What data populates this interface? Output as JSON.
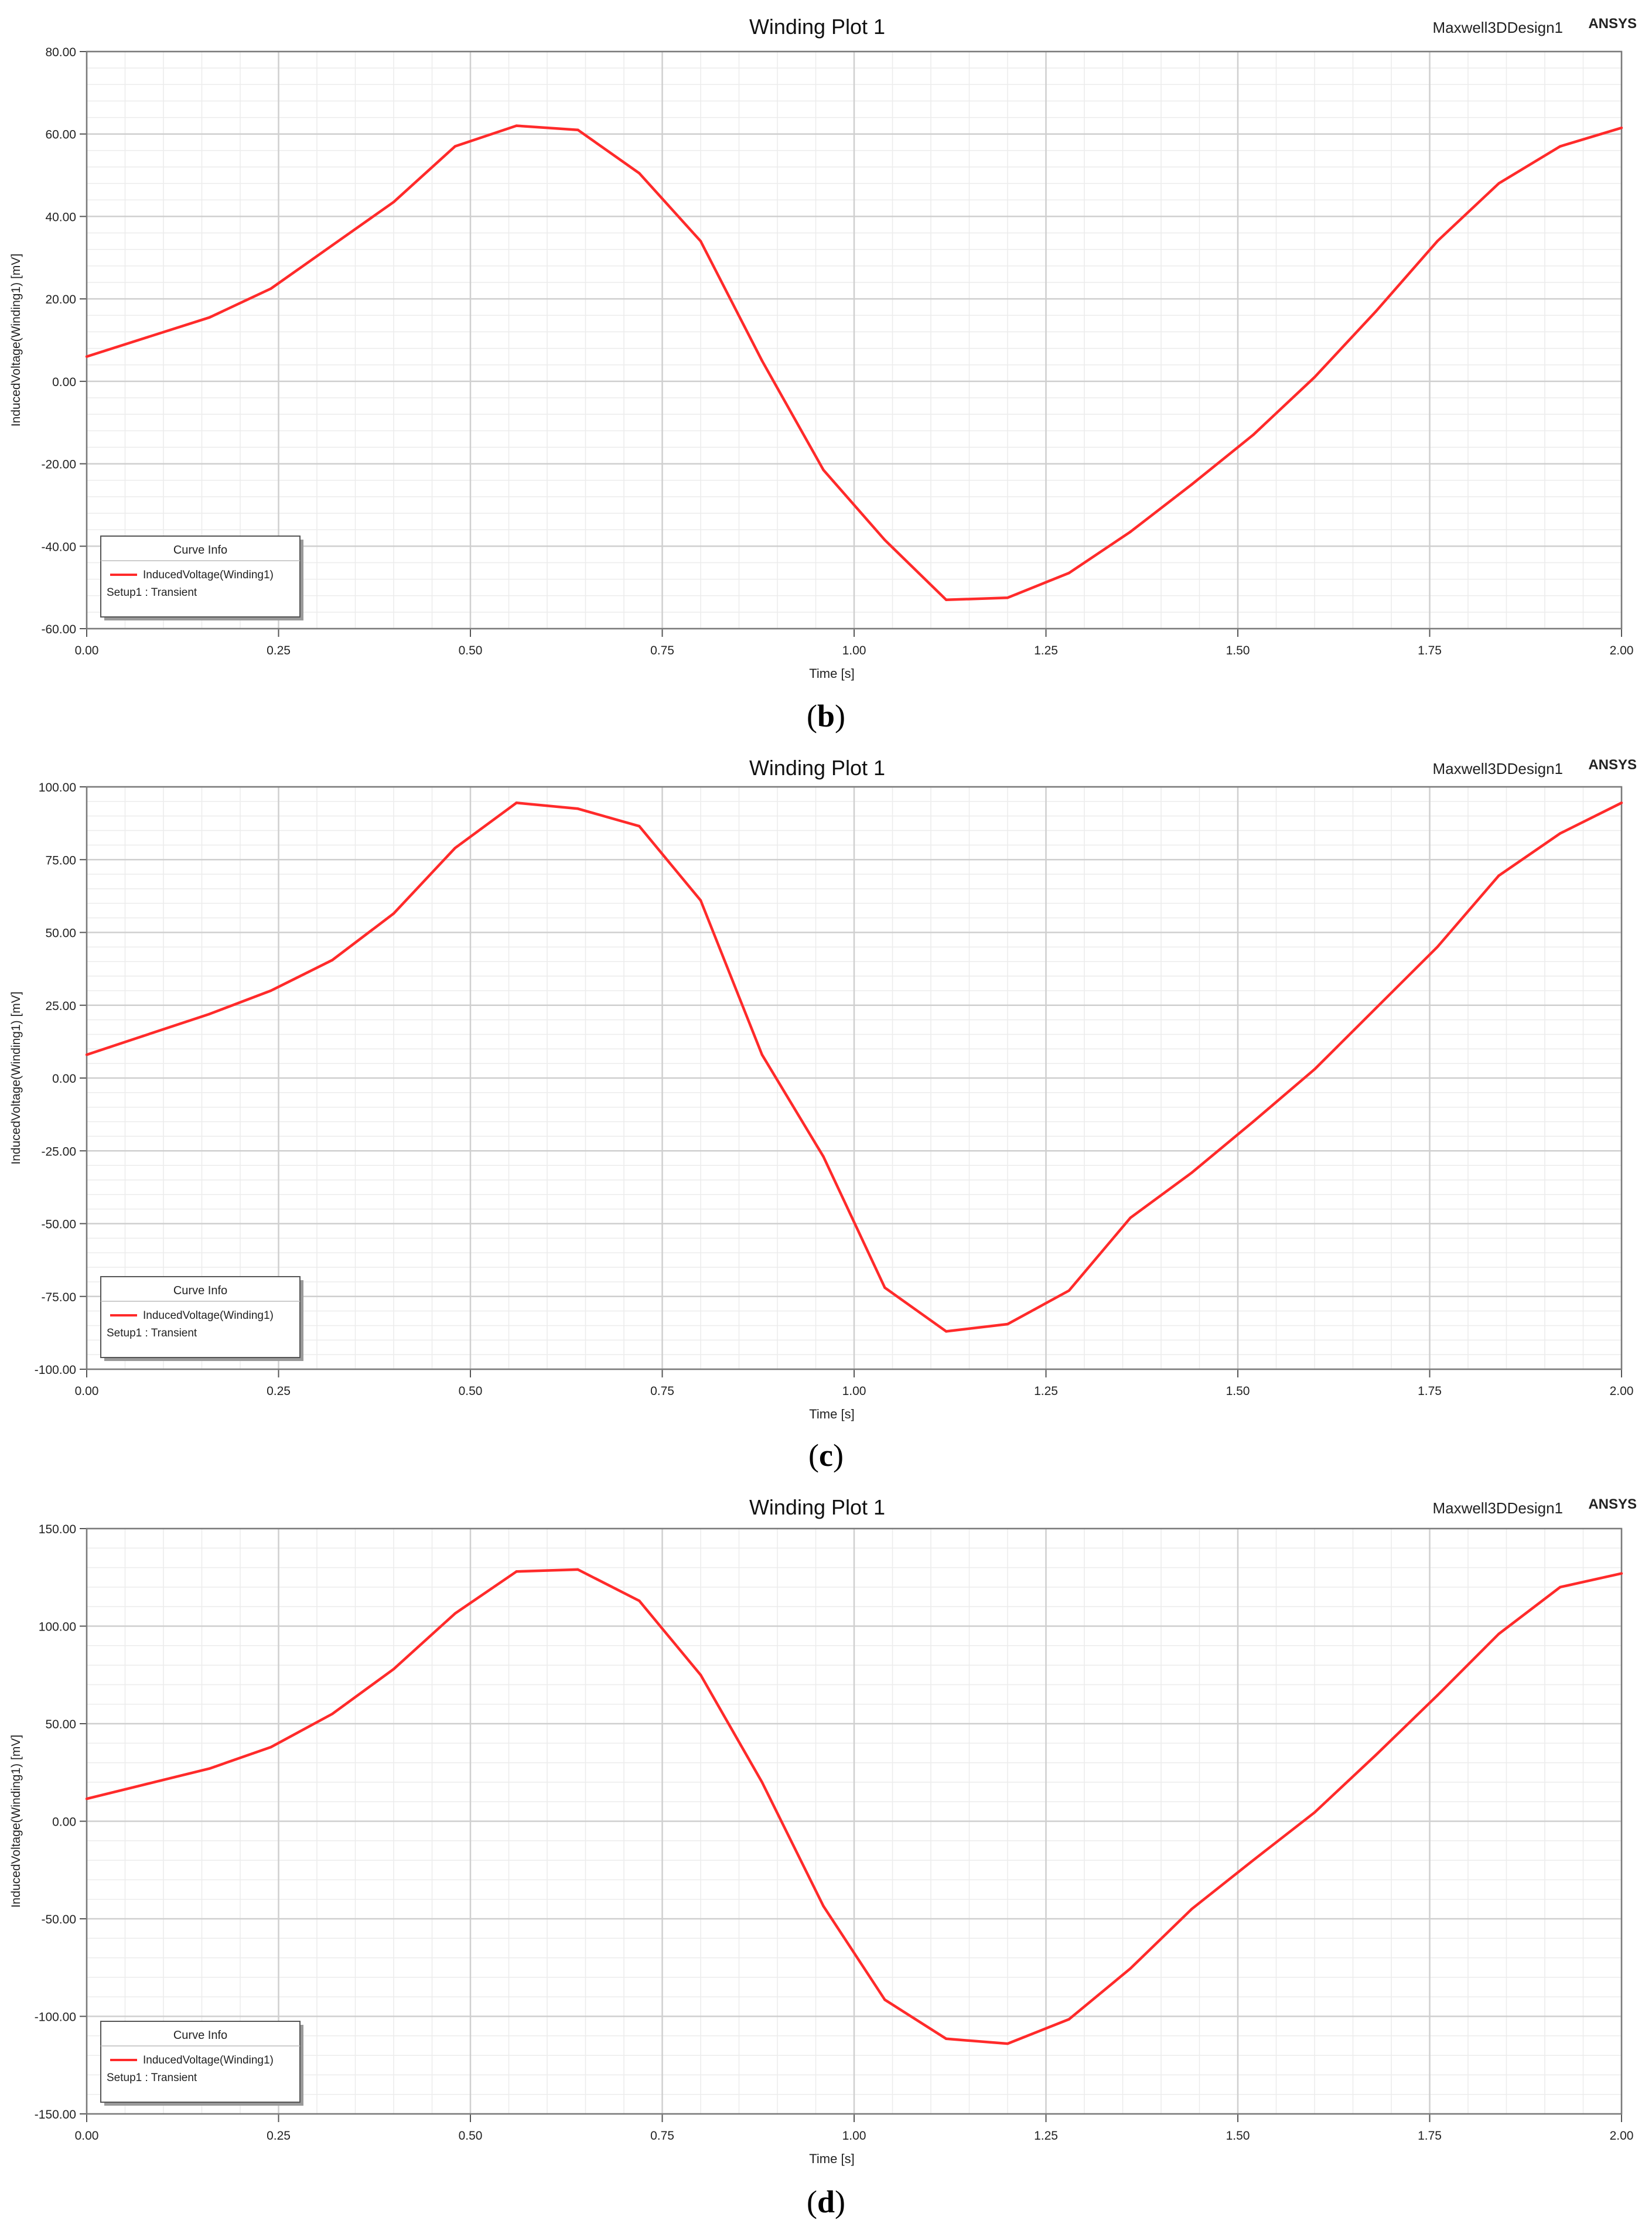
{
  "chart_data": [
    {
      "type": "line",
      "panel_label": "b",
      "title": "Winding Plot 1",
      "design_name": "Maxwell3DDesign1",
      "brand": "ANSYS",
      "xlabel": "Time [s]",
      "ylabel": "InducedVoltage(Winding1) [mV]",
      "xlim": [
        0,
        2
      ],
      "ylim": [
        -60,
        80
      ],
      "xticks": [
        0,
        0.25,
        0.5,
        0.75,
        1,
        1.25,
        1.5,
        1.75,
        2
      ],
      "xtick_labels": [
        "0.00",
        "0.25",
        "0.50",
        "0.75",
        "1.00",
        "1.25",
        "1.50",
        "1.75",
        "2.00"
      ],
      "yticks": [
        -60,
        -40,
        -20,
        0,
        20,
        40,
        60,
        80
      ],
      "ytick_labels": [
        "-60.00",
        "-40.00",
        "-20.00",
        "0.00",
        "20.00",
        "40.00",
        "60.00",
        "80.00"
      ],
      "grid": true,
      "legend": {
        "title": "Curve Info",
        "entry": "InducedVoltage(Winding1)",
        "setup": "Setup1 : Transient",
        "placement": "bottom-left"
      },
      "line_color": "#ff2a2a",
      "series": [
        {
          "name": "InducedVoltage(Winding1)",
          "x": [
            0,
            0.16,
            0.24,
            0.32,
            0.4,
            0.48,
            0.56,
            0.64,
            0.72,
            0.8,
            0.88,
            0.96,
            1.04,
            1.12,
            1.2,
            1.28,
            1.36,
            1.44,
            1.52,
            1.6,
            1.68,
            1.76,
            1.84,
            1.92,
            2.0
          ],
          "y": [
            6,
            15.5,
            22.5,
            33,
            43.5,
            57,
            62,
            61,
            50.5,
            34,
            5,
            -21.5,
            -38.5,
            -53,
            -52.5,
            -46.5,
            -36.5,
            -25,
            -13,
            1,
            17,
            34,
            48,
            57,
            61.5
          ]
        }
      ]
    },
    {
      "type": "line",
      "panel_label": "c",
      "title": "Winding Plot 1",
      "design_name": "Maxwell3DDesign1",
      "brand": "ANSYS",
      "xlabel": "Time [s]",
      "ylabel": "InducedVoltage(Winding1) [mV]",
      "xlim": [
        0,
        2
      ],
      "ylim": [
        -100,
        100
      ],
      "xticks": [
        0,
        0.25,
        0.5,
        0.75,
        1,
        1.25,
        1.5,
        1.75,
        2
      ],
      "xtick_labels": [
        "0.00",
        "0.25",
        "0.50",
        "0.75",
        "1.00",
        "1.25",
        "1.50",
        "1.75",
        "2.00"
      ],
      "yticks": [
        -100,
        -75,
        -50,
        -25,
        0,
        25,
        50,
        75,
        100
      ],
      "ytick_labels": [
        "-100.00",
        "-75.00",
        "-50.00",
        "-25.00",
        "0.00",
        "25.00",
        "50.00",
        "75.00",
        "100.00"
      ],
      "grid": true,
      "legend": {
        "title": "Curve Info",
        "entry": "InducedVoltage(Winding1)",
        "setup": "Setup1 : Transient",
        "placement": "bottom-left"
      },
      "line_color": "#ff2a2a",
      "series": [
        {
          "name": "InducedVoltage(Winding1)",
          "x": [
            0,
            0.16,
            0.24,
            0.32,
            0.4,
            0.48,
            0.56,
            0.64,
            0.72,
            0.8,
            0.88,
            0.96,
            1.04,
            1.12,
            1.2,
            1.28,
            1.36,
            1.44,
            1.52,
            1.6,
            1.68,
            1.76,
            1.84,
            1.92,
            2.0
          ],
          "y": [
            8,
            22,
            30,
            40.5,
            56.5,
            79,
            94.5,
            92.5,
            86.5,
            61,
            8,
            -27,
            -72,
            -87,
            -84.5,
            -73,
            -48,
            -32.5,
            -15,
            3,
            24,
            45,
            69.5,
            84,
            94.5
          ]
        }
      ]
    },
    {
      "type": "line",
      "panel_label": "d",
      "title": "Winding Plot 1",
      "design_name": "Maxwell3DDesign1",
      "brand": "ANSYS",
      "xlabel": "Time [s]",
      "ylabel": "InducedVoltage(Winding1) [mV]",
      "xlim": [
        0,
        2
      ],
      "ylim": [
        -150,
        150
      ],
      "xticks": [
        0,
        0.25,
        0.5,
        0.75,
        1,
        1.25,
        1.5,
        1.75,
        2
      ],
      "xtick_labels": [
        "0.00",
        "0.25",
        "0.50",
        "0.75",
        "1.00",
        "1.25",
        "1.50",
        "1.75",
        "2.00"
      ],
      "yticks": [
        -150,
        -100,
        -50,
        0,
        50,
        100,
        150
      ],
      "ytick_labels": [
        "-150.00",
        "-100.00",
        "-50.00",
        "0.00",
        "50.00",
        "100.00",
        "150.00"
      ],
      "grid": true,
      "legend": {
        "title": "Curve Info",
        "entry": "InducedVoltage(Winding1)",
        "setup": "Setup1 : Transient",
        "placement": "bottom-left"
      },
      "line_color": "#ff2a2a",
      "series": [
        {
          "name": "InducedVoltage(Winding1)",
          "x": [
            0,
            0.16,
            0.24,
            0.32,
            0.4,
            0.48,
            0.56,
            0.64,
            0.72,
            0.8,
            0.88,
            0.96,
            1.04,
            1.12,
            1.2,
            1.28,
            1.36,
            1.44,
            1.52,
            1.6,
            1.68,
            1.76,
            1.84,
            1.92,
            2.0
          ],
          "y": [
            11.5,
            27,
            38,
            55,
            78,
            106.5,
            128,
            129,
            113,
            75,
            20,
            -43.5,
            -91.5,
            -111.5,
            -114,
            -101.5,
            -75.5,
            -45,
            -20,
            4.5,
            34,
            64.5,
            96,
            120,
            127
          ]
        }
      ]
    }
  ]
}
